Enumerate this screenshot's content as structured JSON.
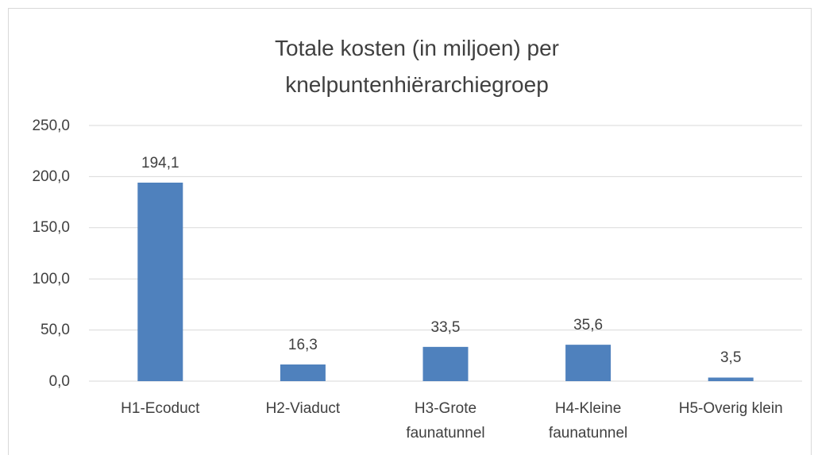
{
  "chart_data": {
    "type": "bar",
    "title": "Totale kosten (in miljoen) per knelpuntenhiërarchiegroep",
    "categories": [
      "H1-Ecoduct",
      "H2-Viaduct",
      "H3-Grote faunatunnel",
      "H4-Kleine faunatunnel",
      "H5-Overig klein"
    ],
    "values": [
      194.1,
      16.3,
      33.5,
      35.6,
      3.5
    ],
    "value_labels": [
      "194,1",
      "16,3",
      "33,5",
      "35,6",
      "3,5"
    ],
    "color": "#4f81bd",
    "ylim": [
      0,
      250
    ],
    "yticks": [
      {
        "value": 0,
        "label": "0,0"
      },
      {
        "value": 50,
        "label": "50,0"
      },
      {
        "value": 100,
        "label": "100,0"
      },
      {
        "value": 150,
        "label": "150,0"
      },
      {
        "value": 200,
        "label": "200,0"
      },
      {
        "value": 250,
        "label": "250,0"
      }
    ],
    "grid": true
  }
}
